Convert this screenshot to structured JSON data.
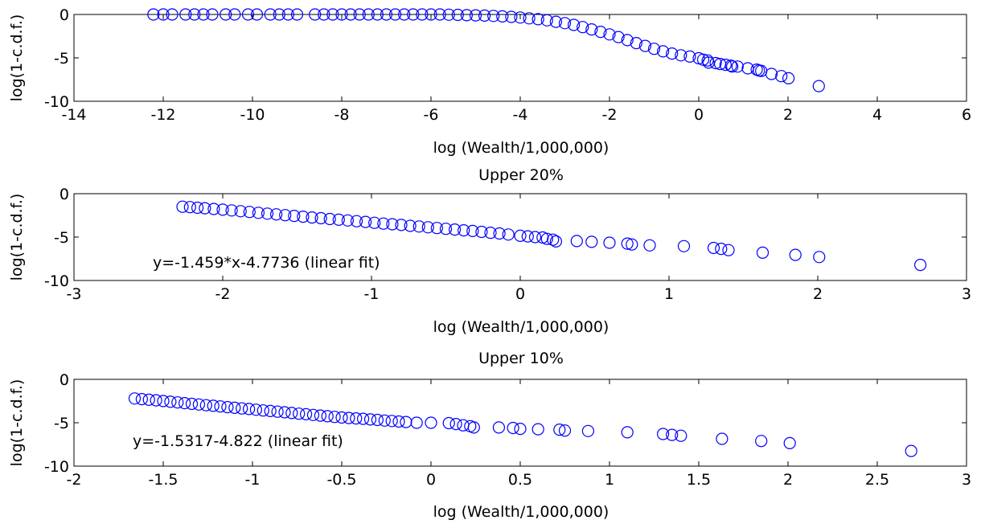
{
  "chart_data": [
    {
      "type": "scatter",
      "title": "",
      "xlabel": "log (Wealth/1,000,000)",
      "ylabel": "log(1-c.d.f.)",
      "xlim": [
        -14,
        6
      ],
      "ylim": [
        -10,
        0
      ],
      "xticks": [
        "-14",
        "-12",
        "-10",
        "-8",
        "-6",
        "-4",
        "-2",
        "0",
        "2",
        "4",
        "6"
      ],
      "yticks": [
        "-10",
        "-5",
        "0"
      ],
      "marker": "circle",
      "marker_color": "#0000ff",
      "annotation": "",
      "points": [
        [
          -12.22,
          0
        ],
        [
          -12.0,
          0
        ],
        [
          -11.8,
          0
        ],
        [
          -11.5,
          0
        ],
        [
          -11.3,
          0
        ],
        [
          -11.1,
          0
        ],
        [
          -10.9,
          0
        ],
        [
          -10.6,
          0
        ],
        [
          -10.4,
          0
        ],
        [
          -10.1,
          0
        ],
        [
          -9.9,
          0
        ],
        [
          -9.6,
          0
        ],
        [
          -9.4,
          0
        ],
        [
          -9.2,
          0
        ],
        [
          -9.0,
          0
        ],
        [
          -8.6,
          0
        ],
        [
          -8.4,
          0
        ],
        [
          -8.2,
          0
        ],
        [
          -8.0,
          0
        ],
        [
          -7.8,
          0
        ],
        [
          -7.6,
          0
        ],
        [
          -7.4,
          0
        ],
        [
          -7.2,
          0
        ],
        [
          -7.0,
          0
        ],
        [
          -6.8,
          0
        ],
        [
          -6.6,
          0
        ],
        [
          -6.4,
          0
        ],
        [
          -6.2,
          0
        ],
        [
          -6.0,
          0
        ],
        [
          -5.8,
          0
        ],
        [
          -5.6,
          -0.03
        ],
        [
          -5.4,
          -0.05
        ],
        [
          -5.2,
          -0.08
        ],
        [
          -5.0,
          -0.1
        ],
        [
          -4.8,
          -0.13
        ],
        [
          -4.6,
          -0.17
        ],
        [
          -4.4,
          -0.22
        ],
        [
          -4.2,
          -0.28
        ],
        [
          -4.0,
          -0.35
        ],
        [
          -3.8,
          -0.44
        ],
        [
          -3.6,
          -0.55
        ],
        [
          -3.4,
          -0.68
        ],
        [
          -3.2,
          -0.84
        ],
        [
          -3.0,
          -1.0
        ],
        [
          -2.8,
          -1.2
        ],
        [
          -2.6,
          -1.45
        ],
        [
          -2.4,
          -1.72
        ],
        [
          -2.2,
          -2.0
        ],
        [
          -2.0,
          -2.3
        ],
        [
          -1.8,
          -2.6
        ],
        [
          -1.6,
          -2.95
        ],
        [
          -1.4,
          -3.3
        ],
        [
          -1.2,
          -3.62
        ],
        [
          -1.0,
          -3.95
        ],
        [
          -0.8,
          -4.25
        ],
        [
          -0.6,
          -4.5
        ],
        [
          -0.4,
          -4.7
        ],
        [
          -0.2,
          -4.85
        ],
        [
          0.0,
          -5.05
        ],
        [
          0.1,
          -5.2
        ],
        [
          0.2,
          -5.3
        ],
        [
          0.22,
          -5.55
        ],
        [
          0.38,
          -5.6
        ],
        [
          0.48,
          -5.7
        ],
        [
          0.6,
          -5.8
        ],
        [
          0.72,
          -5.9
        ],
        [
          0.75,
          -6.0
        ],
        [
          0.87,
          -6.0
        ],
        [
          1.1,
          -6.2
        ],
        [
          1.3,
          -6.35
        ],
        [
          1.35,
          -6.45
        ],
        [
          1.4,
          -6.5
        ],
        [
          1.63,
          -6.85
        ],
        [
          1.85,
          -7.1
        ],
        [
          2.01,
          -7.35
        ],
        [
          2.69,
          -8.25
        ]
      ]
    },
    {
      "type": "scatter",
      "title": "Upper 20%",
      "xlabel": "log (Wealth/1,000,000)",
      "ylabel": "log(1-c.d.f.)",
      "xlim": [
        -3,
        3
      ],
      "ylim": [
        -10,
        0
      ],
      "xticks": [
        "-3",
        "-2",
        "-1",
        "0",
        "1",
        "2",
        "3"
      ],
      "yticks": [
        "-10",
        "-5",
        "0"
      ],
      "marker": "circle",
      "marker_color": "#0000ff",
      "annotation": "y=-1.459*x-4.7736 (linear fit)",
      "points": [
        [
          -2.27,
          -1.5
        ],
        [
          -2.22,
          -1.55
        ],
        [
          -2.17,
          -1.62
        ],
        [
          -2.12,
          -1.68
        ],
        [
          -2.06,
          -1.76
        ],
        [
          -2.0,
          -1.84
        ],
        [
          -1.94,
          -1.93
        ],
        [
          -1.88,
          -2.02
        ],
        [
          -1.82,
          -2.1
        ],
        [
          -1.76,
          -2.2
        ],
        [
          -1.7,
          -2.3
        ],
        [
          -1.64,
          -2.38
        ],
        [
          -1.58,
          -2.47
        ],
        [
          -1.52,
          -2.56
        ],
        [
          -1.46,
          -2.65
        ],
        [
          -1.4,
          -2.74
        ],
        [
          -1.34,
          -2.82
        ],
        [
          -1.28,
          -2.92
        ],
        [
          -1.22,
          -3.0
        ],
        [
          -1.16,
          -3.08
        ],
        [
          -1.1,
          -3.17
        ],
        [
          -1.04,
          -3.25
        ],
        [
          -0.98,
          -3.35
        ],
        [
          -0.92,
          -3.44
        ],
        [
          -0.86,
          -3.52
        ],
        [
          -0.8,
          -3.6
        ],
        [
          -0.74,
          -3.7
        ],
        [
          -0.68,
          -3.78
        ],
        [
          -0.62,
          -3.87
        ],
        [
          -0.56,
          -3.95
        ],
        [
          -0.5,
          -4.05
        ],
        [
          -0.44,
          -4.13
        ],
        [
          -0.38,
          -4.22
        ],
        [
          -0.32,
          -4.3
        ],
        [
          -0.26,
          -4.4
        ],
        [
          -0.2,
          -4.5
        ],
        [
          -0.14,
          -4.58
        ],
        [
          -0.08,
          -4.7
        ],
        [
          0.0,
          -4.85
        ],
        [
          0.05,
          -4.92
        ],
        [
          0.1,
          -5.0
        ],
        [
          0.15,
          -5.05
        ],
        [
          0.18,
          -5.2
        ],
        [
          0.22,
          -5.3
        ],
        [
          0.24,
          -5.5
        ],
        [
          0.38,
          -5.45
        ],
        [
          0.48,
          -5.55
        ],
        [
          0.6,
          -5.65
        ],
        [
          0.72,
          -5.75
        ],
        [
          0.75,
          -5.85
        ],
        [
          0.87,
          -5.95
        ],
        [
          1.1,
          -6.05
        ],
        [
          1.3,
          -6.25
        ],
        [
          1.35,
          -6.35
        ],
        [
          1.4,
          -6.5
        ],
        [
          1.63,
          -6.8
        ],
        [
          1.85,
          -7.05
        ],
        [
          2.01,
          -7.3
        ],
        [
          2.69,
          -8.2
        ]
      ]
    },
    {
      "type": "scatter",
      "title": "Upper 10%",
      "xlabel": "log (Wealth/1,000,000)",
      "ylabel": "log(1-c.d.f.)",
      "xlim": [
        -2,
        3
      ],
      "ylim": [
        -10,
        0
      ],
      "xticks": [
        "-2",
        "-1.5",
        "-1",
        "-0.5",
        "0",
        "0.5",
        "1",
        "1.5",
        "2",
        "2.5",
        "3"
      ],
      "yticks": [
        "-10",
        "-5",
        "0"
      ],
      "marker": "circle",
      "marker_color": "#0000ff",
      "annotation": "y=-1.5317-4.822 (linear fit)",
      "points": [
        [
          -1.66,
          -2.2
        ],
        [
          -1.62,
          -2.28
        ],
        [
          -1.58,
          -2.35
        ],
        [
          -1.54,
          -2.42
        ],
        [
          -1.5,
          -2.5
        ],
        [
          -1.46,
          -2.58
        ],
        [
          -1.42,
          -2.66
        ],
        [
          -1.38,
          -2.74
        ],
        [
          -1.34,
          -2.82
        ],
        [
          -1.3,
          -2.9
        ],
        [
          -1.26,
          -2.98
        ],
        [
          -1.22,
          -3.05
        ],
        [
          -1.18,
          -3.12
        ],
        [
          -1.14,
          -3.2
        ],
        [
          -1.1,
          -3.28
        ],
        [
          -1.06,
          -3.35
        ],
        [
          -1.02,
          -3.42
        ],
        [
          -0.98,
          -3.5
        ],
        [
          -0.94,
          -3.58
        ],
        [
          -0.9,
          -3.65
        ],
        [
          -0.86,
          -3.72
        ],
        [
          -0.82,
          -3.8
        ],
        [
          -0.78,
          -3.88
        ],
        [
          -0.74,
          -3.95
        ],
        [
          -0.7,
          -4.02
        ],
        [
          -0.66,
          -4.1
        ],
        [
          -0.62,
          -4.18
        ],
        [
          -0.58,
          -4.25
        ],
        [
          -0.54,
          -4.32
        ],
        [
          -0.5,
          -4.4
        ],
        [
          -0.46,
          -4.45
        ],
        [
          -0.42,
          -4.5
        ],
        [
          -0.38,
          -4.55
        ],
        [
          -0.34,
          -4.62
        ],
        [
          -0.3,
          -4.68
        ],
        [
          -0.26,
          -4.75
        ],
        [
          -0.22,
          -4.8
        ],
        [
          -0.18,
          -4.86
        ],
        [
          -0.14,
          -4.92
        ],
        [
          -0.08,
          -5.0
        ],
        [
          0.0,
          -5.0
        ],
        [
          0.1,
          -5.05
        ],
        [
          0.14,
          -5.15
        ],
        [
          0.18,
          -5.3
        ],
        [
          0.22,
          -5.4
        ],
        [
          0.24,
          -5.55
        ],
        [
          0.38,
          -5.55
        ],
        [
          0.46,
          -5.6
        ],
        [
          0.5,
          -5.7
        ],
        [
          0.6,
          -5.75
        ],
        [
          0.72,
          -5.8
        ],
        [
          0.75,
          -5.9
        ],
        [
          0.88,
          -5.95
        ],
        [
          1.1,
          -6.1
        ],
        [
          1.3,
          -6.3
        ],
        [
          1.35,
          -6.4
        ],
        [
          1.4,
          -6.5
        ],
        [
          1.63,
          -6.85
        ],
        [
          1.85,
          -7.1
        ],
        [
          2.01,
          -7.35
        ],
        [
          2.69,
          -8.25
        ]
      ]
    }
  ]
}
